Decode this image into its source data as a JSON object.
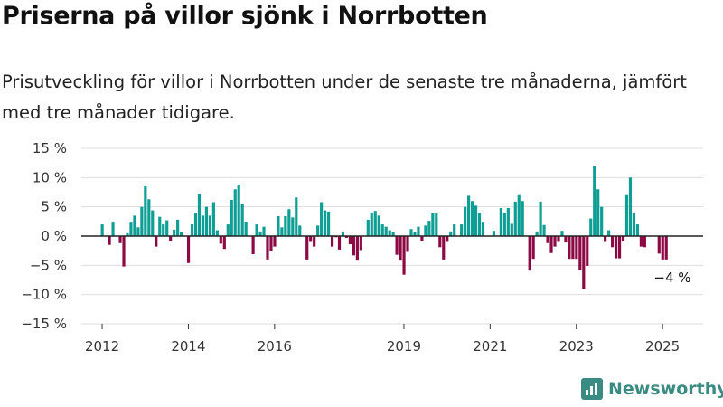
{
  "title": "Priserna på villor sjönk i Norrbotten",
  "subtitle": "Prisutveckling för villor i Norrbotten under de senaste tre månaderna, jämfört med tre månader tidigare.",
  "brand": {
    "name": "Newsworthy",
    "color": "#3a8b82"
  },
  "colors": {
    "positive": "#0e9e94",
    "negative": "#8c0a44",
    "zero_line": "#222222",
    "grid": "#dddddd"
  },
  "chart_data": {
    "type": "bar",
    "title": "Priserna på villor sjönk i Norrbotten",
    "subtitle": "Prisutveckling för villor i Norrbotten under de senaste tre månaderna, jämfört med tre månader tidigare.",
    "xlabel": "",
    "ylabel": "",
    "x_start": "2012-01",
    "frequency": "monthly",
    "ylim": [
      -15,
      15
    ],
    "yticks": [
      15,
      10,
      5,
      0,
      -5,
      -10,
      -15
    ],
    "ytick_labels": [
      "15 %",
      "10 %",
      "5 %",
      "0 %",
      "−5 %",
      "−10 %",
      "−15 %"
    ],
    "xtick_labels": [
      "2012",
      "2014",
      "2016",
      "2019",
      "2021",
      "2023",
      "2025"
    ],
    "xtick_years": [
      2012,
      2014,
      2016,
      2019,
      2021,
      2023,
      2025
    ],
    "grid": true,
    "values": [
      2,
      0,
      -1.5,
      2.3,
      0,
      -1.2,
      -5.2,
      0.5,
      2.3,
      3.5,
      1.5,
      5,
      8.5,
      6.3,
      4.4,
      -1.8,
      3.3,
      2,
      2.7,
      -0.8,
      1.1,
      2.8,
      0.7,
      0,
      -4.6,
      2,
      4,
      7.2,
      3.5,
      5,
      3.5,
      5.8,
      1,
      -1.3,
      -2.2,
      2,
      6.2,
      8,
      8.8,
      5.5,
      2.4,
      0,
      -3.1,
      2,
      0.8,
      1.6,
      -4,
      -2.5,
      -1.8,
      3.4,
      1.5,
      3.4,
      4.6,
      3.2,
      6.6,
      1.8,
      0,
      -4,
      -1,
      -1.8,
      1.8,
      5.8,
      4.4,
      4.2,
      -1.8,
      -0.2,
      -2.3,
      0.8,
      -0.3,
      -1.4,
      -3.3,
      -4.2,
      -2.4,
      0,
      2.8,
      3.9,
      4.3,
      3.5,
      2,
      1.6,
      1,
      0.7,
      -3.2,
      -4.2,
      -6.6,
      -2.7,
      1.2,
      0.7,
      1.6,
      -0.8,
      1.8,
      2.6,
      4,
      4,
      -1.9,
      -4,
      -1,
      0.8,
      2,
      0,
      2,
      5,
      6.9,
      6,
      5.2,
      4,
      2.3,
      0,
      0,
      0.9,
      0,
      4.8,
      4,
      4.8,
      2.1,
      5.9,
      7,
      6,
      0,
      -5.9,
      -3.9,
      0.8,
      5.9,
      1.9,
      -1.2,
      -2.9,
      -1.8,
      -1,
      0.9,
      -1.1,
      -3.9,
      -3.9,
      -3.9,
      -5.8,
      -9,
      -5.1,
      3,
      12,
      8,
      5,
      -1,
      1,
      -1.9,
      -3.8,
      -3.8,
      -0.9,
      7,
      10,
      4,
      2,
      -1.8,
      -1.9,
      0,
      0,
      0,
      -3,
      -4,
      -4
    ],
    "annotation": {
      "label": "−4 %",
      "value": -4
    }
  }
}
